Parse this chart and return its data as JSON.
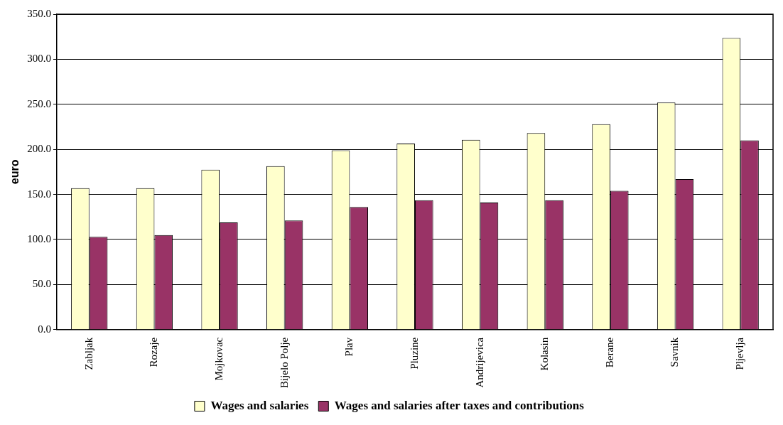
{
  "chart_data": {
    "type": "bar",
    "ylabel": "euro",
    "categories": [
      "Zabljak",
      "Rozaje",
      "Mojkovac",
      "Bijelo Polje",
      "Plav",
      "Pluzine",
      "Andrijevica",
      "Kolasin",
      "Berane",
      "Savnik",
      "Pljevlja"
    ],
    "series": [
      {
        "name": "Wages and salaries",
        "color": "#ffffcc",
        "values": [
          157,
          157,
          177.5,
          181.5,
          199,
          206.5,
          210.5,
          218,
          228,
          252,
          323.5
        ]
      },
      {
        "name": "Wages and salaries after taxes and contributions",
        "color": "#993366",
        "values": [
          103,
          105,
          119,
          121,
          136,
          143.5,
          141,
          143.5,
          154,
          167,
          210
        ]
      }
    ],
    "ylim": [
      0,
      350
    ],
    "yticks": [
      {
        "value": 0,
        "label": "0.0"
      },
      {
        "value": 50,
        "label": "50.0"
      },
      {
        "value": 100,
        "label": "100.0"
      },
      {
        "value": 150,
        "label": "150.0"
      },
      {
        "value": 200,
        "label": "200.0"
      },
      {
        "value": 250,
        "label": "250.0"
      },
      {
        "value": 300,
        "label": "300.0"
      },
      {
        "value": 350,
        "label": "350.0"
      }
    ],
    "grid": "y",
    "legend": "bottom"
  }
}
